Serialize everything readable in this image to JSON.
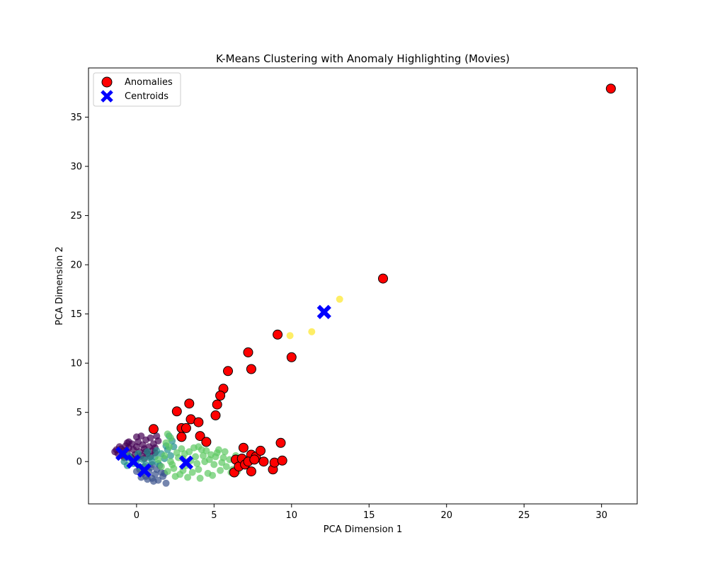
{
  "chart_data": {
    "type": "scatter",
    "title": "K-Means Clustering with Anomaly Highlighting (Movies)",
    "xlabel": "PCA Dimension 1",
    "ylabel": "PCA Dimension 2",
    "xlim": [
      -3.1,
      32.3
    ],
    "ylim": [
      -4.3,
      40.0
    ],
    "xticks": [
      0,
      5,
      10,
      15,
      20,
      25,
      30
    ],
    "yticks": [
      0,
      5,
      10,
      15,
      20,
      25,
      30,
      35
    ],
    "grid": false,
    "legend": {
      "position": "top-left",
      "entries": [
        {
          "label": "Anomalies",
          "marker": "circle",
          "color": "#ff0000"
        },
        {
          "label": "Centroids",
          "marker": "x",
          "color": "#0000ff"
        }
      ]
    },
    "colors": {
      "cluster_0": "#440154",
      "cluster_1": "#3b528b",
      "cluster_2": "#21918c",
      "cluster_3": "#5ec962",
      "cluster_4": "#fde725",
      "anomaly": "#ff0000",
      "centroid": "#0000ff"
    },
    "clusters": [
      {
        "id": 0,
        "color": "#440154",
        "points": [
          [
            -1.4,
            1.0
          ],
          [
            -1.2,
            0.8
          ],
          [
            -1.0,
            1.3
          ],
          [
            -0.9,
            0.6
          ],
          [
            -0.8,
            1.1
          ],
          [
            -0.7,
            1.6
          ],
          [
            -0.6,
            0.9
          ],
          [
            -0.5,
            1.4
          ],
          [
            -0.4,
            0.5
          ],
          [
            -0.3,
            1.8
          ],
          [
            -0.2,
            1.2
          ],
          [
            -0.1,
            0.7
          ],
          [
            0.0,
            1.5
          ],
          [
            0.1,
            2.0
          ],
          [
            0.2,
            1.0
          ],
          [
            0.3,
            0.6
          ],
          [
            0.4,
            1.7
          ],
          [
            0.5,
            1.3
          ],
          [
            0.6,
            2.2
          ],
          [
            0.7,
            0.8
          ],
          [
            0.8,
            1.5
          ],
          [
            0.9,
            2.4
          ],
          [
            1.0,
            1.1
          ],
          [
            1.1,
            1.8
          ],
          [
            1.2,
            0.9
          ],
          [
            1.3,
            2.6
          ],
          [
            -1.1,
            1.5
          ],
          [
            -0.8,
            0.4
          ],
          [
            -0.5,
            2.0
          ],
          [
            0.0,
            2.5
          ],
          [
            0.3,
            2.6
          ],
          [
            0.6,
            1.0
          ],
          [
            0.9,
            0.5
          ],
          [
            1.2,
            1.4
          ],
          [
            1.4,
            2.1
          ],
          [
            -0.3,
            0.3
          ],
          [
            0.1,
            0.4
          ],
          [
            0.5,
            0.3
          ],
          [
            -1.3,
            1.2
          ],
          [
            -0.6,
            1.9
          ]
        ]
      },
      {
        "id": 1,
        "color": "#3b528b",
        "points": [
          [
            0.2,
            -0.8
          ],
          [
            0.4,
            -1.2
          ],
          [
            0.6,
            -1.5
          ],
          [
            0.8,
            -1.0
          ],
          [
            1.0,
            -1.7
          ],
          [
            1.2,
            -1.3
          ],
          [
            1.4,
            -1.9
          ],
          [
            1.6,
            -1.1
          ],
          [
            0.5,
            -0.5
          ],
          [
            0.9,
            -0.6
          ],
          [
            1.3,
            -0.8
          ],
          [
            1.7,
            -1.5
          ],
          [
            0.3,
            -1.6
          ],
          [
            0.7,
            -1.8
          ],
          [
            1.1,
            -2.0
          ],
          [
            1.5,
            -0.4
          ],
          [
            1.8,
            -1.2
          ],
          [
            0.0,
            -1.0
          ],
          [
            1.9,
            -2.2
          ],
          [
            1.0,
            -0.3
          ]
        ]
      },
      {
        "id": 2,
        "color": "#21918c",
        "points": [
          [
            -0.8,
            0.0
          ],
          [
            -0.6,
            -0.4
          ],
          [
            -0.4,
            0.3
          ],
          [
            -0.2,
            -0.2
          ],
          [
            0.0,
            0.1
          ],
          [
            0.2,
            -0.5
          ],
          [
            0.4,
            0.2
          ],
          [
            0.6,
            -0.3
          ],
          [
            0.8,
            0.4
          ],
          [
            1.0,
            0.0
          ],
          [
            1.2,
            0.5
          ],
          [
            1.4,
            -0.2
          ],
          [
            1.6,
            0.8
          ],
          [
            1.8,
            0.3
          ],
          [
            2.0,
            1.2
          ],
          [
            2.2,
            0.6
          ],
          [
            2.4,
            1.5
          ],
          [
            -0.5,
            0.6
          ],
          [
            0.1,
            0.8
          ],
          [
            0.7,
            1.0
          ],
          [
            1.3,
            1.1
          ],
          [
            1.9,
            1.6
          ],
          [
            2.3,
            2.1
          ],
          [
            2.1,
            2.6
          ]
        ]
      },
      {
        "id": 3,
        "color": "#5ec962",
        "points": [
          [
            1.4,
            0.2
          ],
          [
            1.6,
            -0.5
          ],
          [
            1.8,
            0.6
          ],
          [
            2.0,
            -1.0
          ],
          [
            2.2,
            0.0
          ],
          [
            2.4,
            -0.7
          ],
          [
            2.6,
            0.9
          ],
          [
            2.8,
            -1.3
          ],
          [
            3.0,
            0.3
          ],
          [
            3.2,
            -0.4
          ],
          [
            3.4,
            1.0
          ],
          [
            3.6,
            -1.1
          ],
          [
            3.8,
            0.5
          ],
          [
            4.0,
            -0.8
          ],
          [
            4.2,
            1.2
          ],
          [
            4.4,
            0.0
          ],
          [
            4.6,
            -1.2
          ],
          [
            4.8,
            0.7
          ],
          [
            5.0,
            -0.3
          ],
          [
            5.2,
            0.9
          ],
          [
            5.4,
            -0.9
          ],
          [
            5.6,
            0.4
          ],
          [
            5.8,
            -0.5
          ],
          [
            6.0,
            0.2
          ],
          [
            6.2,
            -0.8
          ],
          [
            6.4,
            0.6
          ],
          [
            6.6,
            -0.2
          ],
          [
            6.8,
            0.3
          ],
          [
            2.1,
            1.5
          ],
          [
            2.5,
            -1.5
          ],
          [
            2.9,
            1.3
          ],
          [
            3.3,
            -1.6
          ],
          [
            3.7,
            1.4
          ],
          [
            4.1,
            -1.7
          ],
          [
            4.5,
            1.1
          ],
          [
            4.9,
            -1.4
          ],
          [
            5.3,
            1.2
          ],
          [
            5.7,
            1.0
          ],
          [
            6.1,
            -1.1
          ],
          [
            2.2,
            2.4
          ],
          [
            2.0,
            2.8
          ],
          [
            3.1,
            0.8
          ],
          [
            3.5,
            0.1
          ],
          [
            3.9,
            -0.2
          ],
          [
            4.3,
            0.6
          ],
          [
            4.7,
            0.2
          ],
          [
            5.1,
            0.5
          ],
          [
            5.5,
            -0.1
          ],
          [
            2.7,
            0.4
          ],
          [
            2.3,
            -0.3
          ],
          [
            1.9,
            1.9
          ],
          [
            6.5,
            -1.0
          ],
          [
            7.0,
            -0.4
          ],
          [
            3.0,
            -0.9
          ],
          [
            4.0,
            1.5
          ]
        ]
      },
      {
        "id": 4,
        "color": "#fde725",
        "points": [
          [
            9.9,
            12.8
          ],
          [
            11.3,
            13.2
          ],
          [
            13.1,
            16.5
          ]
        ]
      }
    ],
    "anomalies": [
      [
        30.6,
        37.9
      ],
      [
        15.9,
        18.6
      ],
      [
        9.1,
        12.9
      ],
      [
        10.0,
        10.6
      ],
      [
        7.2,
        11.1
      ],
      [
        7.4,
        9.4
      ],
      [
        5.9,
        9.2
      ],
      [
        5.6,
        7.4
      ],
      [
        5.4,
        6.7
      ],
      [
        5.2,
        5.8
      ],
      [
        5.1,
        4.7
      ],
      [
        3.4,
        5.9
      ],
      [
        2.6,
        5.1
      ],
      [
        3.5,
        4.3
      ],
      [
        4.0,
        4.0
      ],
      [
        2.9,
        3.4
      ],
      [
        3.2,
        3.4
      ],
      [
        1.1,
        3.3
      ],
      [
        2.9,
        2.5
      ],
      [
        4.1,
        2.6
      ],
      [
        4.5,
        2.0
      ],
      [
        6.9,
        1.4
      ],
      [
        7.4,
        0.7
      ],
      [
        7.7,
        0.5
      ],
      [
        8.0,
        1.1
      ],
      [
        9.3,
        1.9
      ],
      [
        6.3,
        -1.1
      ],
      [
        6.4,
        0.2
      ],
      [
        6.6,
        -0.5
      ],
      [
        6.8,
        0.3
      ],
      [
        7.0,
        -0.3
      ],
      [
        7.2,
        0.0
      ],
      [
        7.4,
        -1.0
      ],
      [
        7.6,
        0.2
      ],
      [
        8.2,
        0.0
      ],
      [
        8.8,
        -0.8
      ],
      [
        8.9,
        -0.1
      ],
      [
        9.4,
        0.1
      ]
    ],
    "centroids": [
      [
        -0.9,
        0.8
      ],
      [
        -0.2,
        0.0
      ],
      [
        0.5,
        -0.9
      ],
      [
        3.2,
        -0.1
      ],
      [
        12.1,
        15.2
      ]
    ]
  }
}
